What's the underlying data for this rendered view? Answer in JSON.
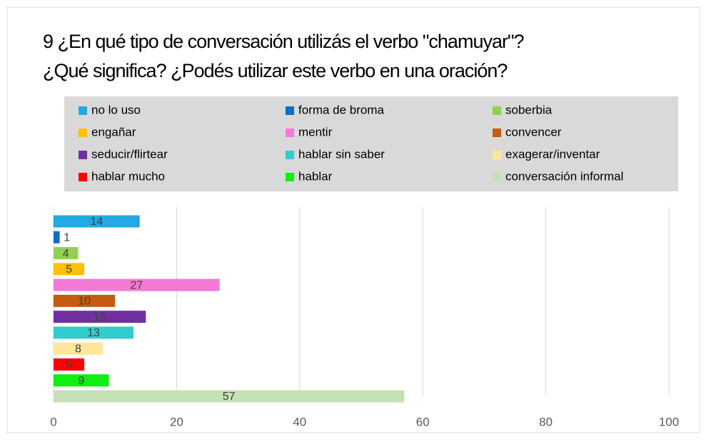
{
  "chart_data": {
    "type": "bar",
    "orientation": "horizontal",
    "title": "9 ¿En qué tipo de conversación utilizás el verbo \"chamuyar\"?",
    "subtitle": "¿Qué significa? ¿Podés utilizar este verbo en una oración?",
    "categories": [
      "no lo uso",
      "forma de broma",
      "soberbia",
      "engañar",
      "mentir",
      "convencer",
      "seducir/flirtear",
      "hablar sin saber",
      "exagerar/inventar",
      "hablar mucho",
      "hablar",
      "conversación informal"
    ],
    "values": [
      14,
      1,
      4,
      5,
      27,
      10,
      15,
      13,
      8,
      5,
      9,
      57
    ],
    "colors": [
      "#22a8e4",
      "#0a6fc0",
      "#92d050",
      "#ffc000",
      "#f27ad4",
      "#c55a11",
      "#7030a0",
      "#33cccc",
      "#ffe699",
      "#ff0000",
      "#11ee11",
      "#c5e0b4"
    ],
    "xlim": [
      0,
      100
    ],
    "xticks": [
      0,
      20,
      40,
      60,
      80,
      100
    ],
    "grid": true,
    "legend": "top"
  }
}
